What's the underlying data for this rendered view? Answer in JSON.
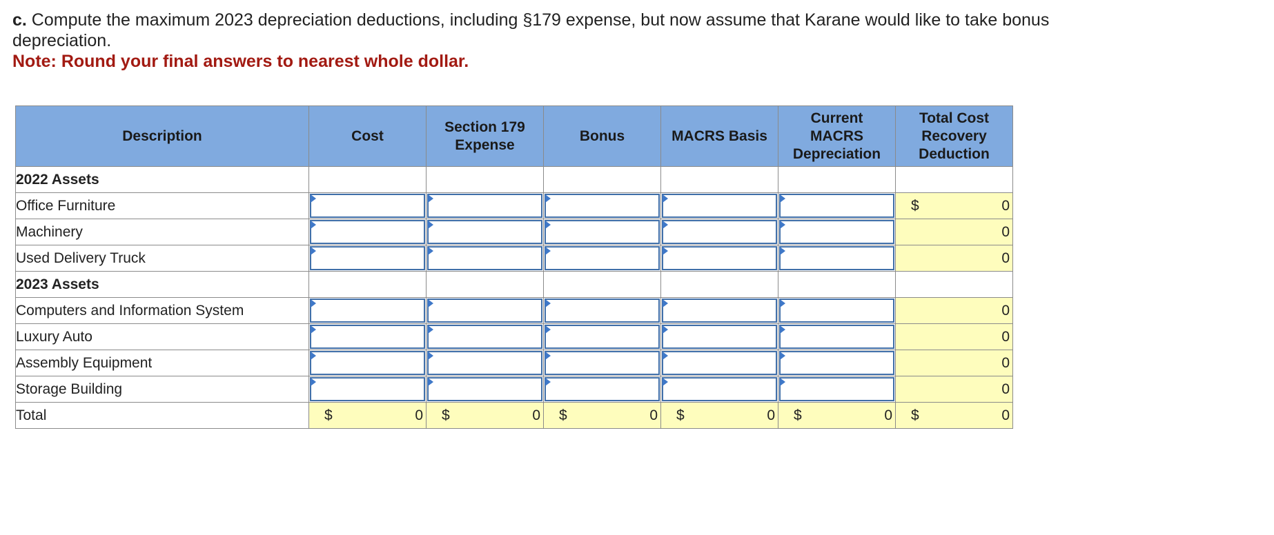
{
  "question": {
    "label": "c.",
    "text": " Compute the maximum 2023 depreciation deductions, including §179 expense, but now assume that Karane would like to take bonus depreciation.",
    "note": "Note: Round your final answers to nearest whole dollar."
  },
  "table": {
    "headers": {
      "description": "Description",
      "cost": "Cost",
      "sec179_line1": "Section 179",
      "sec179_line2": "Expense",
      "bonus": "Bonus",
      "macrs_basis": "MACRS Basis",
      "current_line1": "Current",
      "current_line2": "MACRS",
      "current_line3": "Depreciation",
      "total_line1": "Total Cost",
      "total_line2": "Recovery",
      "total_line3": "Deduction"
    },
    "section_2022": "2022 Assets",
    "rows_2022": [
      {
        "label": "Office Furniture",
        "dollar": "$",
        "total": "0"
      },
      {
        "label": "Machinery",
        "dollar": "",
        "total": "0"
      },
      {
        "label": "Used Delivery Truck",
        "dollar": "",
        "total": "0"
      }
    ],
    "section_2023": "2023 Assets",
    "rows_2023": [
      {
        "label": "Computers and Information System",
        "dollar": "",
        "total": "0"
      },
      {
        "label": "Luxury Auto",
        "dollar": "",
        "total": "0"
      },
      {
        "label": "Assembly Equipment",
        "dollar": "",
        "total": "0"
      },
      {
        "label": "Storage Building",
        "dollar": "",
        "total": "0"
      }
    ],
    "total_row": {
      "label": "Total",
      "dollar": "$",
      "cost": "0",
      "sec179": "0",
      "bonus": "0",
      "macrs_basis": "0",
      "current": "0",
      "total": "0"
    }
  },
  "colors": {
    "header_bg": "#80aadf",
    "computed_bg": "#fefdbd",
    "input_border": "#3f6ea8",
    "note_color": "#a21a12"
  }
}
